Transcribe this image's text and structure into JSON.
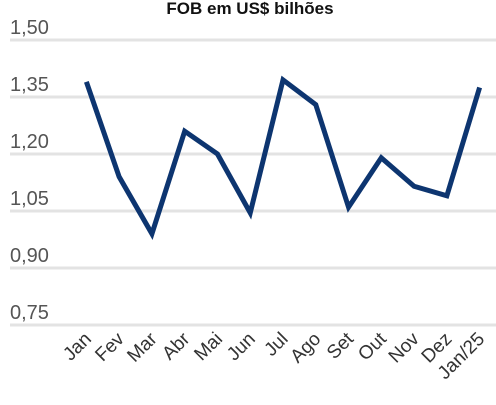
{
  "chart_data": {
    "type": "line",
    "title": "FOB em US$ bilhões",
    "categories": [
      "Jan",
      "Fev",
      "Mar",
      "Abr",
      "Mai",
      "Jun",
      "Jul",
      "Ago",
      "Set",
      "Out",
      "Nov",
      "Dez",
      "Jan/25"
    ],
    "series": [
      {
        "name": "FOB",
        "color": "#0d3570",
        "values": [
          1.39,
          1.14,
          0.99,
          1.26,
          1.2,
          1.045,
          1.395,
          1.33,
          1.06,
          1.19,
          1.115,
          1.09,
          1.375
        ]
      }
    ],
    "ylim": [
      0.75,
      1.5
    ],
    "yticks": [
      {
        "value": 0.75,
        "label": "0,75"
      },
      {
        "value": 0.9,
        "label": "0,90"
      },
      {
        "value": 1.05,
        "label": "1,05"
      },
      {
        "value": 1.2,
        "label": "1,20"
      },
      {
        "value": 1.35,
        "label": "1,35"
      },
      {
        "value": 1.5,
        "label": "1,50"
      }
    ],
    "grid": true
  }
}
